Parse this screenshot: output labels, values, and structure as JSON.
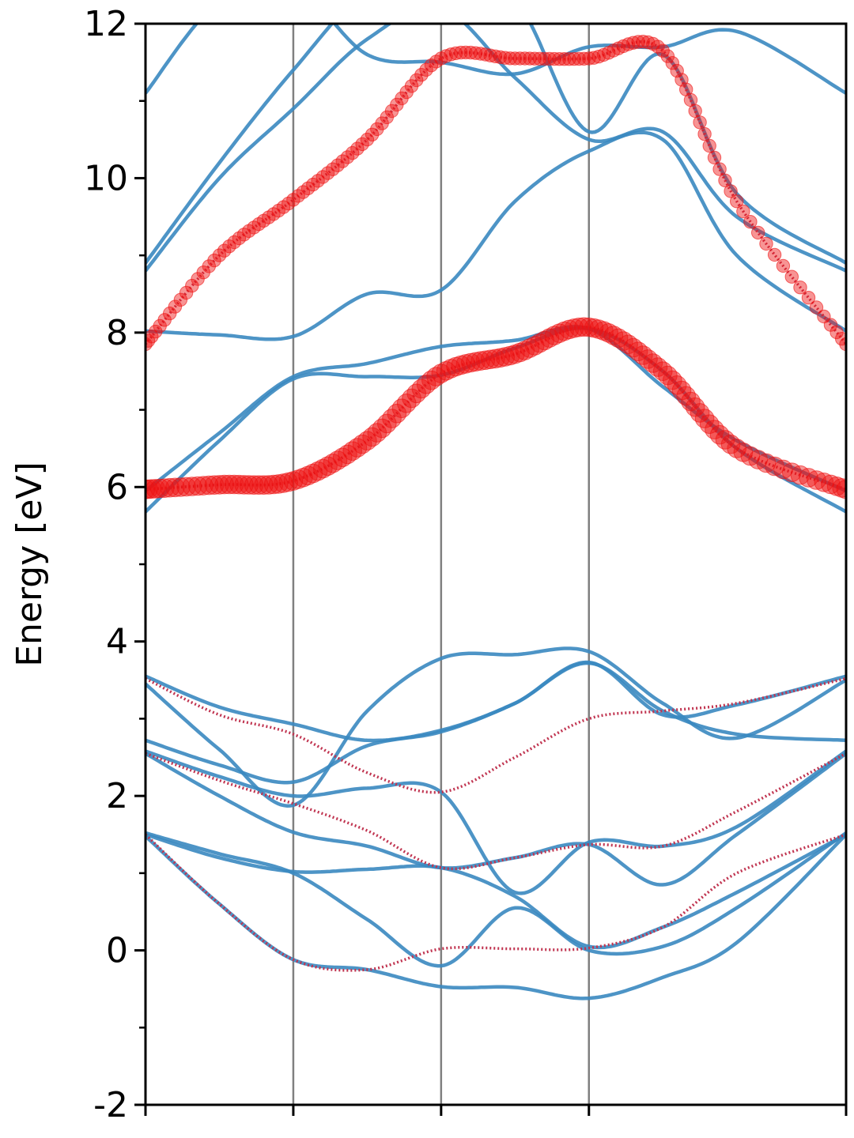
{
  "chart_data": {
    "type": "line",
    "title": "",
    "xlabel": "",
    "ylabel": "Energy [eV]",
    "ylim": [
      -2,
      12
    ],
    "xlim": [
      0,
      4.74
    ],
    "grid": false,
    "legend": "none",
    "yticks": [
      -2,
      0,
      2,
      4,
      6,
      8,
      10,
      12
    ],
    "ytick_labels": [
      "-2",
      "0",
      "2",
      "4",
      "6",
      "8",
      "10",
      "12"
    ],
    "yminor_ticks": [
      -1,
      1,
      3,
      5,
      7,
      9,
      11
    ],
    "xticks": [
      0,
      1,
      2,
      3,
      4.74
    ],
    "high_symmetry_lines": [
      1,
      2,
      3
    ],
    "colors": {
      "band": "#3a88c0",
      "weight": "#ee1111",
      "weight_line": "#c03450",
      "vline": "#808080"
    },
    "series": [
      {
        "role": "band",
        "x": [
          0,
          0.5,
          1,
          1.5,
          2,
          2.5,
          3,
          3.5,
          4,
          4.74
        ],
        "values": [
          1.48,
          0.6,
          -0.12,
          -0.25,
          -0.47,
          -0.48,
          -0.62,
          -0.35,
          0.1,
          1.5
        ]
      },
      {
        "role": "band",
        "x": [
          0,
          0.5,
          1,
          1.5,
          2,
          2.5,
          3,
          3.5,
          4,
          4.74
        ],
        "values": [
          1.52,
          1.25,
          1.0,
          0.4,
          -0.2,
          0.55,
          0.0,
          0.05,
          0.55,
          1.52
        ]
      },
      {
        "role": "band",
        "x": [
          0,
          0.5,
          1,
          1.5,
          2,
          2.5,
          3,
          3.5,
          4,
          4.74
        ],
        "values": [
          1.5,
          1.2,
          1.02,
          1.05,
          1.07,
          0.7,
          0.05,
          0.3,
          0.75,
          1.5
        ]
      },
      {
        "role": "band",
        "x": [
          0,
          0.5,
          1,
          1.5,
          2,
          2.5,
          3,
          3.5,
          4,
          4.74
        ],
        "values": [
          2.55,
          2.0,
          1.53,
          1.35,
          1.07,
          1.2,
          1.37,
          0.85,
          1.5,
          2.55
        ]
      },
      {
        "role": "band",
        "x": [
          0,
          0.5,
          1,
          1.5,
          2,
          2.5,
          3,
          3.5,
          4,
          4.74
        ],
        "values": [
          2.58,
          2.25,
          2.0,
          2.1,
          2.05,
          0.75,
          1.4,
          1.35,
          1.6,
          2.58
        ]
      },
      {
        "role": "band",
        "x": [
          0,
          0.5,
          1,
          1.5,
          2,
          2.5,
          3,
          3.5,
          4,
          4.74
        ],
        "values": [
          2.72,
          2.4,
          2.18,
          2.65,
          2.83,
          3.2,
          3.72,
          3.1,
          2.8,
          2.72
        ]
      },
      {
        "role": "band",
        "x": [
          0,
          0.5,
          1,
          1.5,
          2,
          2.5,
          3,
          3.5,
          4,
          4.74
        ],
        "values": [
          3.45,
          2.6,
          1.88,
          3.1,
          3.78,
          3.83,
          3.87,
          3.2,
          2.75,
          3.5
        ]
      },
      {
        "role": "band",
        "x": [
          0,
          0.5,
          1,
          1.5,
          2,
          2.5,
          3,
          3.5,
          4,
          4.74
        ],
        "values": [
          3.55,
          3.15,
          2.93,
          2.72,
          2.85,
          3.2,
          3.73,
          3.05,
          3.18,
          3.55
        ]
      },
      {
        "role": "band",
        "x": [
          0,
          0.5,
          1,
          1.5,
          2,
          2.5,
          3,
          3.5,
          4,
          4.74
        ],
        "values": [
          5.68,
          6.6,
          7.4,
          7.43,
          7.45,
          7.8,
          8.05,
          7.5,
          6.5,
          5.68
        ]
      },
      {
        "role": "band",
        "x": [
          0,
          0.5,
          1,
          1.5,
          2,
          2.5,
          3,
          3.5,
          4,
          4.74
        ],
        "values": [
          5.95,
          6.7,
          7.43,
          7.6,
          7.82,
          7.9,
          8.05,
          7.3,
          6.6,
          5.95
        ]
      },
      {
        "role": "band",
        "x": [
          0,
          0.5,
          1,
          1.5,
          2,
          2.5,
          3,
          3.5,
          4,
          4.74
        ],
        "values": [
          8.02,
          7.97,
          7.95,
          8.5,
          8.55,
          9.7,
          10.35,
          10.5,
          9.0,
          8.02
        ]
      },
      {
        "role": "band",
        "x": [
          0,
          0.5,
          1,
          1.5,
          2,
          2.5,
          3,
          3.5,
          4,
          4.74
        ],
        "values": [
          8.8,
          10.0,
          10.9,
          11.8,
          12.2,
          11.3,
          10.5,
          10.6,
          9.5,
          8.8
        ]
      },
      {
        "role": "band",
        "x": [
          0,
          0.5,
          1,
          1.5,
          2,
          2.5,
          3,
          3.5,
          4,
          4.74
        ],
        "values": [
          8.9,
          10.2,
          11.4,
          12.4,
          12.4,
          12.3,
          10.6,
          11.6,
          9.8,
          8.9
        ]
      },
      {
        "role": "band",
        "x": [
          0,
          0.5,
          1,
          1.5,
          2,
          2.5,
          3,
          3.5,
          4,
          4.74
        ],
        "values": [
          11.1,
          12.3,
          12.5,
          11.6,
          11.5,
          11.35,
          11.7,
          11.7,
          11.9,
          11.1
        ]
      },
      {
        "role": "weighted",
        "weight": 0.35,
        "x": [
          0,
          0.5,
          1,
          1.5,
          2,
          2.5,
          3,
          3.5,
          4,
          4.74
        ],
        "values": [
          7.85,
          9.0,
          9.72,
          10.5,
          11.55,
          11.55,
          11.55,
          11.65,
          9.7,
          7.85
        ]
      },
      {
        "role": "weighted",
        "weight": 0.65,
        "x": [
          0,
          0.5,
          1,
          1.5,
          2,
          2.5,
          3,
          3.5,
          4,
          4.74
        ],
        "values": [
          5.97,
          6.03,
          6.08,
          6.6,
          7.47,
          7.72,
          8.07,
          7.5,
          6.5,
          5.97
        ]
      },
      {
        "role": "weighted",
        "weight": 0.0,
        "x": [
          0,
          0.5,
          1,
          1.5,
          2,
          2.5,
          3,
          3.5,
          4,
          4.74
        ],
        "values": [
          1.5,
          0.6,
          -0.12,
          -0.25,
          0.02,
          0.02,
          0.03,
          0.3,
          1.0,
          1.5
        ]
      },
      {
        "role": "weighted",
        "weight": 0.0,
        "x": [
          0,
          0.5,
          1,
          1.5,
          2,
          2.5,
          3,
          3.5,
          4,
          4.74
        ],
        "values": [
          2.55,
          2.2,
          1.9,
          1.55,
          1.07,
          1.2,
          1.37,
          1.35,
          1.8,
          2.55
        ]
      },
      {
        "role": "weighted",
        "weight": 0.0,
        "x": [
          0,
          0.5,
          1,
          1.5,
          2,
          2.5,
          3,
          3.5,
          4,
          4.74
        ],
        "values": [
          3.52,
          3.05,
          2.8,
          2.3,
          2.05,
          2.5,
          3.0,
          3.1,
          3.2,
          3.52
        ]
      }
    ]
  }
}
